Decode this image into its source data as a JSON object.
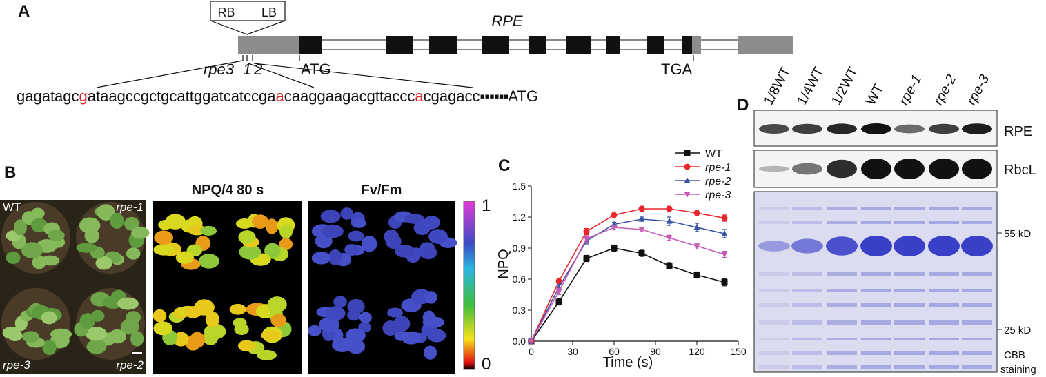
{
  "panel_a": {
    "label": "A",
    "insert_left": "RB",
    "insert_right": "LB",
    "gene": "RPE",
    "alleles": [
      "rpe3",
      "1",
      "2"
    ],
    "start": "ATG",
    "stop": "TGA",
    "sequence": [
      {
        "text": "gagatagc",
        "color": "#111111"
      },
      {
        "text": "g",
        "color": "#e0262b"
      },
      {
        "text": "ataagccgctgcattggatcatccga",
        "color": "#111111"
      },
      {
        "text": "a",
        "color": "#e0262b"
      },
      {
        "text": "caaggaagacgttaccc",
        "color": "#111111"
      },
      {
        "text": "a",
        "color": "#e0262b"
      },
      {
        "text": "cgagacc",
        "color": "#111111"
      }
    ],
    "sequence_end": "ATG"
  },
  "panel_b": {
    "label": "B",
    "plants": [
      "WT",
      "rpe-1",
      "rpe-3",
      "rpe-2"
    ],
    "image_titles": [
      "NPQ/4 80 s",
      "Fv/Fm"
    ],
    "scale_max": "1",
    "scale_min": "0"
  },
  "panel_c": {
    "label": "C"
  },
  "chart_data": {
    "type": "line",
    "xlabel": "Time (s)",
    "ylabel": "NPQ",
    "x": [
      0,
      20,
      40,
      60,
      80,
      100,
      120,
      140
    ],
    "xlim": [
      0,
      150
    ],
    "xticks": [
      0,
      30,
      60,
      90,
      120,
      150
    ],
    "ylim": [
      0,
      1.5
    ],
    "yticks": [
      {
        "value": 0,
        "label": "0.0"
      },
      0.3,
      0.6,
      0.9,
      1.2,
      1.5
    ],
    "legend": "upper right",
    "series": [
      {
        "name": "WT",
        "color": "#111111",
        "marker": "square",
        "values": [
          0,
          0.38,
          0.8,
          0.9,
          0.85,
          0.73,
          0.64,
          0.57
        ],
        "errors": [
          0,
          0.03,
          0.03,
          0.03,
          0.03,
          0.03,
          0.03,
          0.035
        ]
      },
      {
        "name": "rpe-1",
        "color": "#e8262b",
        "marker": "circle",
        "values": [
          0,
          0.58,
          1.06,
          1.22,
          1.28,
          1.28,
          1.24,
          1.19
        ],
        "errors": [
          0,
          0.03,
          0.03,
          0.03,
          0.025,
          0.025,
          0.025,
          0.03
        ]
      },
      {
        "name": "rpe-2",
        "color": "#3a55a4",
        "marker": "triangle-up",
        "values": [
          0,
          0.52,
          0.97,
          1.13,
          1.18,
          1.16,
          1.1,
          1.04
        ],
        "errors": [
          0,
          0.03,
          0.03,
          0.02,
          0.02,
          0.04,
          0.04,
          0.04
        ]
      },
      {
        "name": "rpe-3",
        "color": "#c45bb4",
        "marker": "triangle-down",
        "values": [
          0,
          0.48,
          0.99,
          1.1,
          1.08,
          1.0,
          0.92,
          0.84
        ],
        "errors": [
          0,
          0.03,
          0.03,
          0.02,
          0.02,
          0.025,
          0.03,
          0.03
        ]
      }
    ]
  },
  "panel_d": {
    "label": "D",
    "lanes": [
      "1/8WT",
      "1/4WT",
      "1/2WT",
      "WT",
      "rpe-1",
      "rpe-2",
      "rpe-3"
    ],
    "blots": [
      "RPE",
      "RbcL"
    ],
    "markers": [
      "55 kD",
      "25 kD"
    ],
    "stain": [
      "CBB",
      "staining"
    ]
  }
}
